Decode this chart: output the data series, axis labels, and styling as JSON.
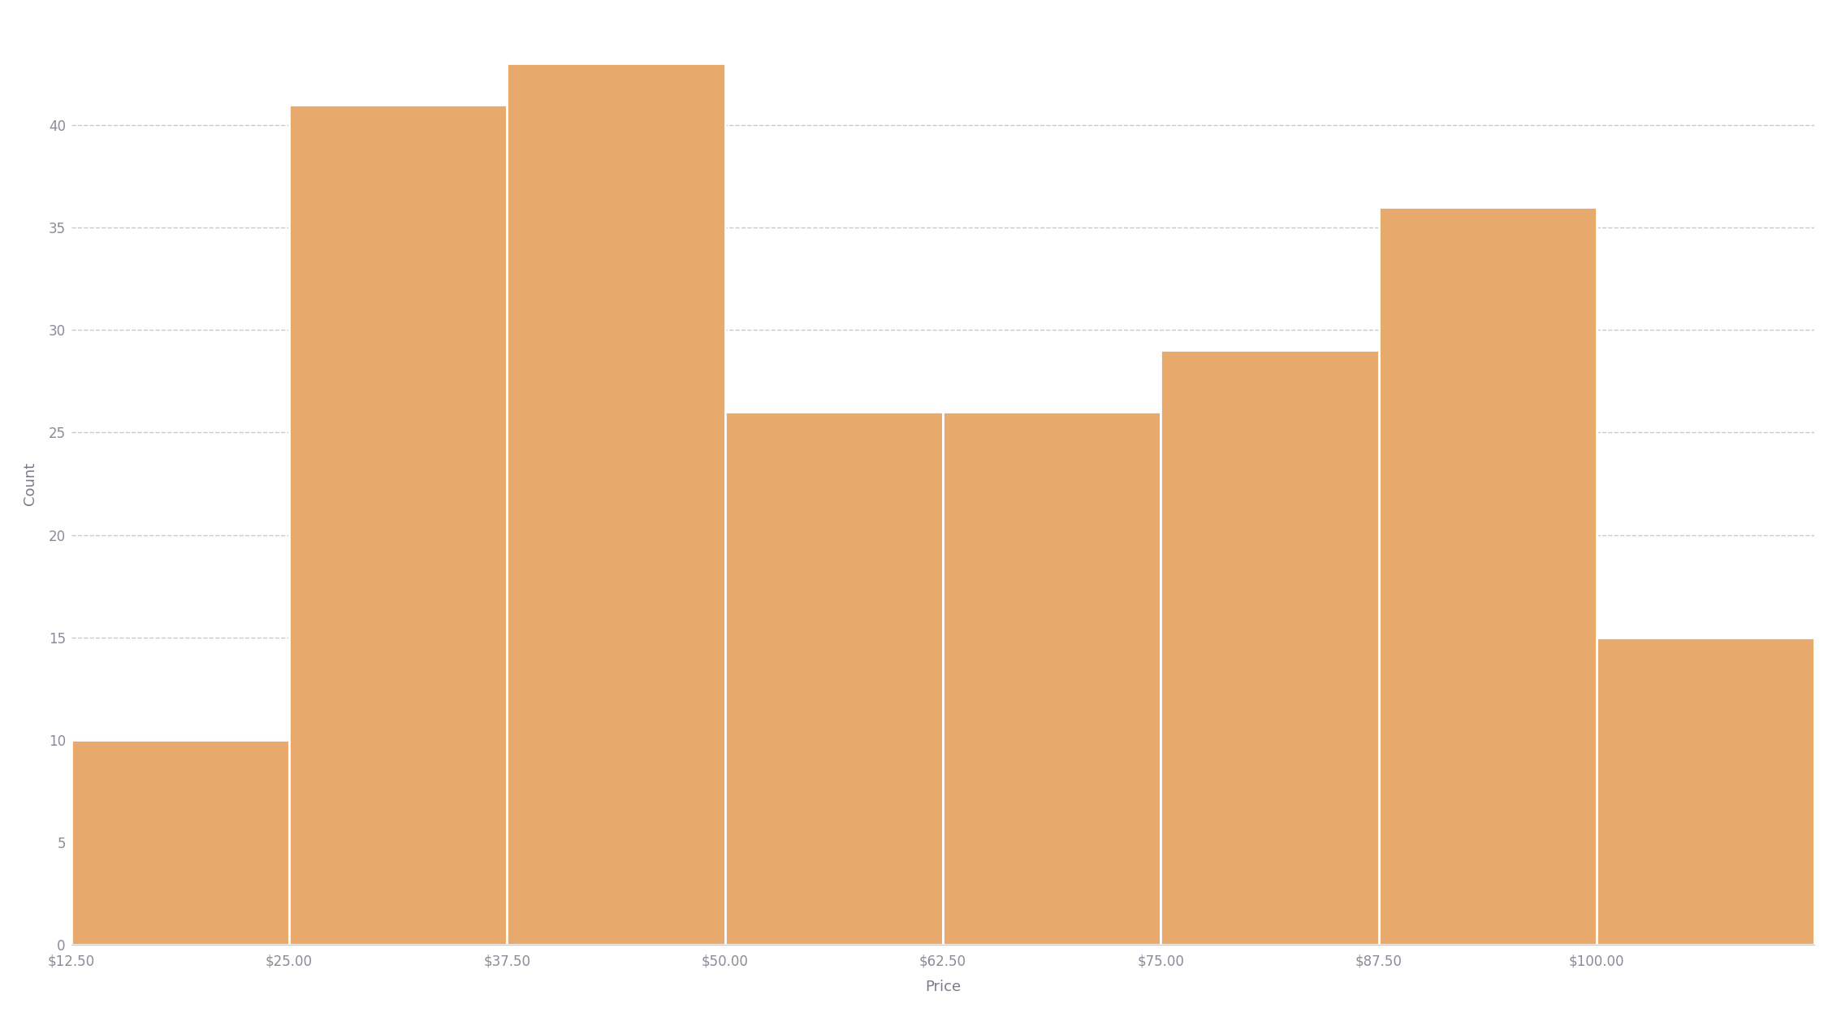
{
  "xlabel": "Price",
  "ylabel": "Count",
  "background_color": "#ffffff",
  "bar_color": "#E8A96C",
  "bar_edge_color": "#ffffff",
  "grid_color": "#c8c8c8",
  "tick_color": "#8a8a9a",
  "label_color": "#7a7a8a",
  "bin_edges": [
    12.5,
    25.0,
    37.5,
    50.0,
    62.5,
    75.0,
    87.5,
    100.0
  ],
  "counts": [
    10,
    41,
    43,
    26,
    26,
    29,
    36,
    15
  ],
  "yticks": [
    0,
    5,
    10,
    15,
    20,
    25,
    30,
    35,
    40
  ],
  "ylim": [
    0,
    45
  ],
  "xtick_labels": [
    "$12.50",
    "$25.00",
    "$37.50",
    "$50.00",
    "$62.50",
    "$75.00",
    "$87.50",
    "$100.00"
  ],
  "axis_label_fontsize": 13,
  "tick_fontsize": 12,
  "bar_linewidth": 2.0,
  "figsize": [
    22.62,
    12.52
  ],
  "dpi": 100
}
